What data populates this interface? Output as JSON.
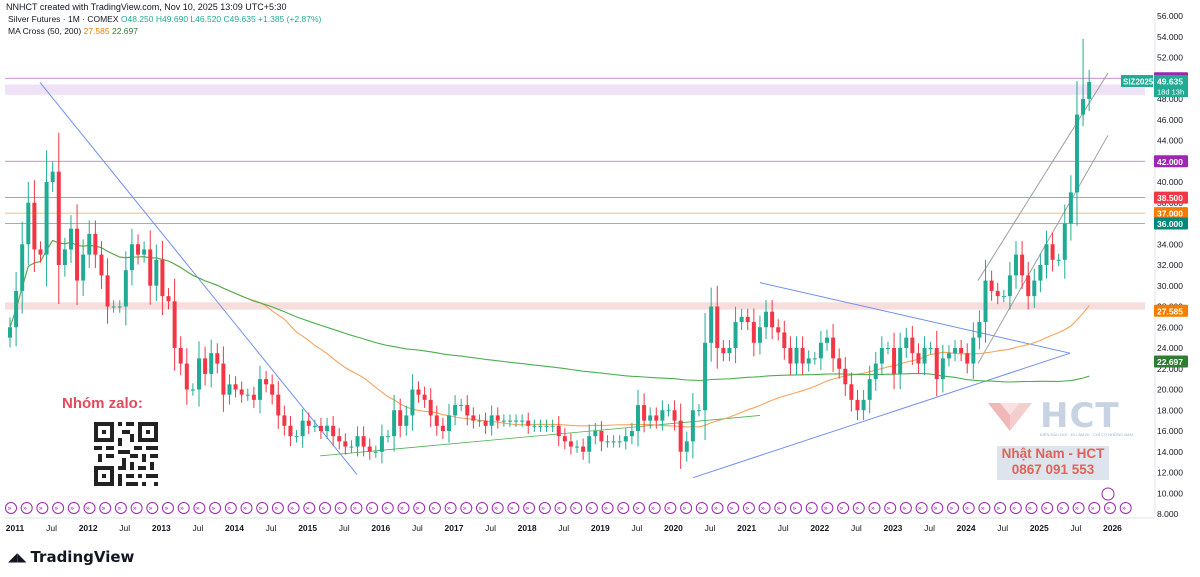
{
  "header": {
    "text": "NNHCT created with TradingView.com, Nov 10, 2025 13:09 UTC+5:30"
  },
  "legend": {
    "symbol": "Silver Futures · 1M · COMEX",
    "open": "O48.250",
    "high": "H49.690",
    "low": "L46.520",
    "close": "C49.635",
    "change": "+1.385 (+2.87%)",
    "ma_label": "MA Cross (50, 200)",
    "ma_fast": "27.585",
    "ma_slow": "22.697"
  },
  "watermarks": {
    "zalo": "Nhóm zalo:",
    "logo": "HCT",
    "logo_sub": "BIẾN ĐẦU ĐỢI · ĐI LÀM ĐỊ · CHỈ CÓ NHỮNG BẠN",
    "name": "Nhật Nam - HCT",
    "phone": "0867 091 553"
  },
  "footer": {
    "brand": "TradingView"
  },
  "colors": {
    "up": "#22ab94",
    "down": "#f23645",
    "ma_fast": "#f7a35c",
    "ma_slow": "#4caf50",
    "trendline": "#6f8ff0",
    "channel": "#9e9e9e",
    "purple": "#9c27b0",
    "orange": "#f57c00",
    "teal": "#00897b",
    "red": "#f23645"
  },
  "chart_data": {
    "type": "candlestick",
    "interval": "1M",
    "y_scale": "linear",
    "ylim": [
      8,
      56
    ],
    "y_ticks": [
      "8.000",
      "10.000",
      "12.000",
      "14.000",
      "16.000",
      "18.000",
      "20.000",
      "22.000",
      "24.000",
      "26.000",
      "28.000",
      "30.000",
      "32.000",
      "34.000",
      "36.000",
      "38.000",
      "40.000",
      "42.000",
      "44.000",
      "46.000",
      "48.000",
      "50.000",
      "52.000",
      "54.000",
      "56.000"
    ],
    "x_ticks": [
      "2011",
      "Jul",
      "2012",
      "Jul",
      "2013",
      "Jul",
      "2014",
      "Jul",
      "2015",
      "Jul",
      "2016",
      "Jul",
      "2017",
      "Jul",
      "2018",
      "Jul",
      "2019",
      "Jul",
      "2020",
      "Jul",
      "2021",
      "Jul",
      "2022",
      "Jul",
      "2023",
      "Jul",
      "2024",
      "Jul",
      "2025",
      "Jul",
      "2026"
    ],
    "x_start": "2011-01",
    "closes": [
      26.0,
      29.5,
      34.0,
      38.0,
      33.5,
      33.0,
      40.0,
      41.0,
      32.0,
      33.5,
      35.5,
      30.5,
      33.0,
      35.0,
      33.0,
      31.0,
      28.0,
      28.0,
      28.0,
      31.5,
      34.0,
      33.0,
      33.5,
      30.0,
      32.5,
      29.0,
      28.5,
      24.0,
      22.5,
      20.0,
      20.0,
      23.0,
      21.5,
      23.5,
      22.5,
      19.5,
      20.5,
      20.0,
      19.5,
      19.5,
      19.0,
      21.0,
      20.5,
      19.5,
      17.5,
      16.5,
      15.5,
      15.5,
      17.0,
      16.5,
      16.5,
      16.0,
      16.5,
      15.5,
      15.0,
      14.5,
      14.5,
      15.5,
      14.5,
      14.0,
      14.0,
      15.5,
      15.5,
      18.0,
      16.5,
      17.5,
      20.0,
      19.5,
      19.0,
      17.5,
      16.5,
      16.0,
      17.5,
      18.5,
      18.5,
      17.5,
      17.0,
      17.0,
      16.5,
      17.5,
      17.0,
      17.0,
      17.0,
      17.0,
      17.0,
      16.5,
      16.5,
      16.5,
      16.5,
      16.5,
      15.5,
      15.0,
      14.5,
      14.5,
      14.0,
      15.5,
      16.0,
      15.0,
      15.0,
      15.0,
      15.0,
      15.5,
      16.0,
      18.5,
      17.0,
      17.5,
      17.0,
      18.0,
      18.0,
      17.0,
      14.0,
      15.0,
      18.0,
      18.0,
      24.5,
      28.0,
      24.0,
      23.5,
      24.0,
      26.5,
      27.0,
      26.5,
      24.5,
      26.0,
      27.5,
      26.0,
      25.5,
      24.0,
      22.5,
      24.0,
      22.5,
      23.0,
      23.0,
      24.5,
      25.0,
      23.0,
      22.0,
      20.5,
      19.0,
      18.0,
      19.0,
      21.0,
      22.5,
      24.0,
      24.0,
      21.5,
      24.0,
      25.0,
      23.5,
      22.5,
      24.0,
      24.0,
      21.0,
      23.0,
      23.5,
      24.0,
      23.5,
      22.5,
      25.0,
      26.5,
      30.5,
      29.5,
      29.0,
      29.0,
      31.0,
      33.0,
      31.0,
      29.0,
      30.5,
      32.0,
      34.0,
      32.5,
      32.5,
      36.0,
      39.0,
      46.5,
      48.0,
      49.635
    ],
    "horizontal_levels": [
      {
        "label": "50.000",
        "value": 50.0,
        "color": "#9c27b0"
      },
      {
        "label": "42.000",
        "value": 42.0,
        "color": "#9c27b0"
      },
      {
        "label": "38.500",
        "value": 38.5,
        "color": "#f23645"
      },
      {
        "label": "37.000",
        "value": 37.0,
        "color": "#f57c00"
      },
      {
        "label": "36.000",
        "value": 36.0,
        "color": "#00897b"
      }
    ],
    "ma_levels": [
      {
        "label": "27.585",
        "value": 27.585,
        "color": "#f57c00"
      },
      {
        "label": "22.697",
        "value": 22.697,
        "color": "#2e7d32"
      }
    ],
    "current_price": {
      "symbol": "SIZ2025",
      "label": "49.635",
      "countdown": "18d 13h",
      "value": 49.635
    },
    "title": "Silver Futures · 1M · COMEX",
    "grid": false
  }
}
